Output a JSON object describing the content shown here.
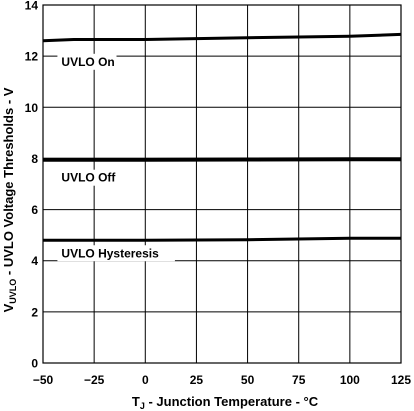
{
  "chart_data": {
    "type": "line",
    "xlim": [
      -50,
      125
    ],
    "ylim": [
      0,
      14
    ],
    "x_ticks": [
      "-50",
      "-25",
      "0",
      "25",
      "50",
      "75",
      "100",
      "125"
    ],
    "y_ticks": [
      "0",
      "2",
      "4",
      "6",
      "8",
      "10",
      "12",
      "14"
    ],
    "grid": true,
    "xlabel": {
      "main": "T",
      "sub": "J",
      "rest": "  -  Junction Temperature - °C"
    },
    "ylabel": {
      "main": "V",
      "sub": "UVLO",
      "rest": " - UVLO Voltage Thresholds - V"
    },
    "series": [
      {
        "name": "UVLO On",
        "points": [
          [
            -50,
            12.6
          ],
          [
            -35,
            12.65
          ],
          [
            0,
            12.65
          ],
          [
            50,
            12.72
          ],
          [
            75,
            12.75
          ],
          [
            100,
            12.78
          ],
          [
            125,
            12.85
          ]
        ]
      },
      {
        "name": "UVLO Off",
        "points": [
          [
            -50,
            7.95
          ],
          [
            0,
            7.95
          ],
          [
            50,
            7.96
          ],
          [
            100,
            7.97
          ],
          [
            125,
            7.97
          ]
        ]
      },
      {
        "name": "UVLO Hysteresis",
        "points": [
          [
            -50,
            4.8
          ],
          [
            0,
            4.8
          ],
          [
            50,
            4.82
          ],
          [
            100,
            4.88
          ],
          [
            125,
            4.88
          ]
        ]
      }
    ]
  }
}
